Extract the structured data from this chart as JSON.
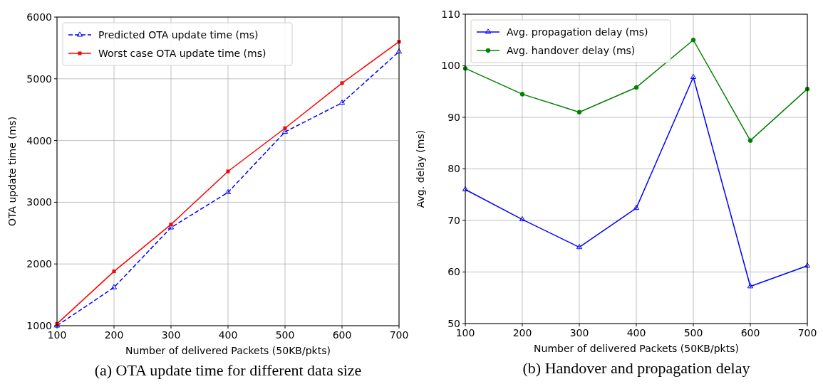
{
  "chart_data": [
    {
      "type": "line",
      "title": "(a) OTA update time for different data size",
      "xlabel": "Number of delivered Packets (50KB/pkts)",
      "ylabel": "OTA update time (ms)",
      "x": [
        100,
        200,
        300,
        400,
        500,
        600,
        700
      ],
      "xlim": [
        100,
        700
      ],
      "xticks": [
        100,
        200,
        300,
        400,
        500,
        600,
        700
      ],
      "ylim": [
        1000,
        6000
      ],
      "yticks": [
        1000,
        2000,
        3000,
        4000,
        5000,
        6000
      ],
      "grid": true,
      "legend": "top left",
      "series": [
        {
          "name": "Predicted OTA update time (ms)",
          "color": "#0000ff",
          "marker": "triangle",
          "line_style": "dashed",
          "values": [
            1000,
            1620,
            2590,
            3160,
            4140,
            4610,
            5440
          ]
        },
        {
          "name": "Worst case OTA update time (ms)",
          "color": "#ff0000",
          "marker": "square",
          "line_style": "solid",
          "values": [
            1030,
            1880,
            2640,
            3500,
            4200,
            4930,
            5600
          ]
        }
      ]
    },
    {
      "type": "line",
      "title": "(b) Handover and propagation delay",
      "xlabel": "Number of delivered Packets (50KB/pkts)",
      "ylabel": "Avg. delay (ms)",
      "x": [
        100,
        200,
        300,
        400,
        500,
        600,
        700
      ],
      "xlim": [
        100,
        700
      ],
      "xticks": [
        100,
        200,
        300,
        400,
        500,
        600,
        700
      ],
      "ylim": [
        50,
        110
      ],
      "yticks": [
        50,
        60,
        70,
        80,
        90,
        100,
        110
      ],
      "grid": true,
      "legend": "top left",
      "series": [
        {
          "name": "Avg. propagation delay (ms)",
          "color": "#0000ff",
          "marker": "triangle",
          "line_style": "solid",
          "values": [
            76,
            70.2,
            64.8,
            72.4,
            97.8,
            57.2,
            61.2
          ]
        },
        {
          "name": "Avg. handover delay (ms)",
          "color": "#008000",
          "marker": "circle",
          "line_style": "solid",
          "values": [
            99.5,
            94.5,
            91,
            95.8,
            105,
            85.5,
            95.5
          ]
        }
      ]
    }
  ]
}
